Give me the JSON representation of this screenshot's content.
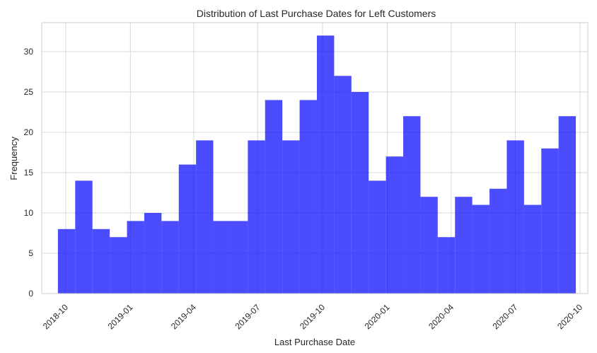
{
  "chart_data": {
    "type": "bar",
    "title": "Distribution of Last Purchase Dates for Left Customers",
    "xlabel": "Last Purchase Date",
    "ylabel": "Frequency",
    "ylim": [
      0,
      33.6
    ],
    "y_ticks": [
      0,
      5,
      10,
      15,
      20,
      25,
      30
    ],
    "x_range": [
      "2018-08-28",
      "2020-10-12"
    ],
    "x_ticks": [
      {
        "date": "2018-10-01",
        "label": "2018-10"
      },
      {
        "date": "2019-01-01",
        "label": "2019-01"
      },
      {
        "date": "2019-04-01",
        "label": "2019-04"
      },
      {
        "date": "2019-07-01",
        "label": "2019-07"
      },
      {
        "date": "2019-10-01",
        "label": "2019-10"
      },
      {
        "date": "2020-01-01",
        "label": "2020-01"
      },
      {
        "date": "2020-04-01",
        "label": "2020-04"
      },
      {
        "date": "2020-07-01",
        "label": "2020-07"
      },
      {
        "date": "2020-10-01",
        "label": "2020-10"
      }
    ],
    "bin_start": "2018-09-20",
    "bin_end": "2020-09-25",
    "values": [
      8,
      14,
      8,
      7,
      9,
      10,
      9,
      16,
      19,
      9,
      9,
      19,
      24,
      19,
      24,
      32,
      27,
      25,
      14,
      17,
      22,
      12,
      7,
      12,
      11,
      13,
      19,
      11,
      18,
      22
    ],
    "bar_color": "#0000ff",
    "bar_opacity": 0.7,
    "grid": true
  }
}
